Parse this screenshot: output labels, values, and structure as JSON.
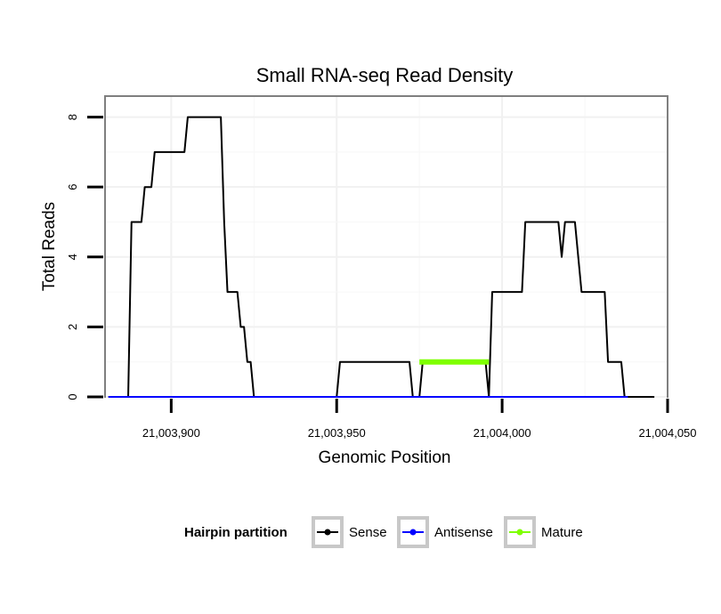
{
  "chart_data": {
    "type": "line",
    "title": "Small RNA-seq Read Density",
    "xlabel": "Genomic Position",
    "ylabel": "Total Reads",
    "xlim": [
      21003880,
      21004050
    ],
    "ylim": [
      0,
      8.6
    ],
    "x_ticks": [
      21003900,
      21003950,
      21004000,
      21004050
    ],
    "x_tick_labels": [
      "21,003,900",
      "21,003,950",
      "21,004,000",
      "21,004,050"
    ],
    "y_ticks": [
      0,
      2,
      4,
      6,
      8
    ],
    "y_tick_labels": [
      "0",
      "2",
      "4",
      "6",
      "8"
    ],
    "grid": true,
    "legend": {
      "title": "Hairpin partition",
      "position": "bottom",
      "entries": [
        "Sense",
        "Antisense",
        "Mature"
      ]
    },
    "series": [
      {
        "name": "Sense",
        "color": "#000000",
        "x": [
          21003881,
          21003887,
          21003888,
          21003891,
          21003892,
          21003894,
          21003895,
          21003899,
          21003900,
          21003904,
          21003905,
          21003915,
          21003916,
          21003917,
          21003920,
          21003921,
          21003922,
          21003923,
          21003924,
          21003925,
          21003950,
          21003951,
          21003972,
          21003973,
          21003975,
          21003976,
          21003995,
          21003996,
          21003997,
          21004006,
          21004007,
          21004017,
          21004018,
          21004019,
          21004022,
          21004024,
          21004031,
          21004032,
          21004036,
          21004037,
          21004039,
          21004046
        ],
        "y": [
          0,
          0,
          5,
          5,
          6,
          6,
          7,
          7,
          7,
          7,
          8,
          8,
          5,
          3,
          3,
          2,
          2,
          1,
          1,
          0,
          0,
          1,
          1,
          0,
          0,
          1,
          1,
          0,
          3,
          3,
          5,
          5,
          4,
          5,
          5,
          3,
          3,
          1,
          1,
          0,
          0,
          0
        ]
      },
      {
        "name": "Antisense",
        "color": "#0000ff",
        "x": [
          21003881,
          21004038
        ],
        "y": [
          0,
          0
        ]
      },
      {
        "name": "Mature",
        "color": "#7fff00",
        "x": [
          21003975,
          21003996
        ],
        "y": [
          1,
          1
        ]
      }
    ]
  }
}
